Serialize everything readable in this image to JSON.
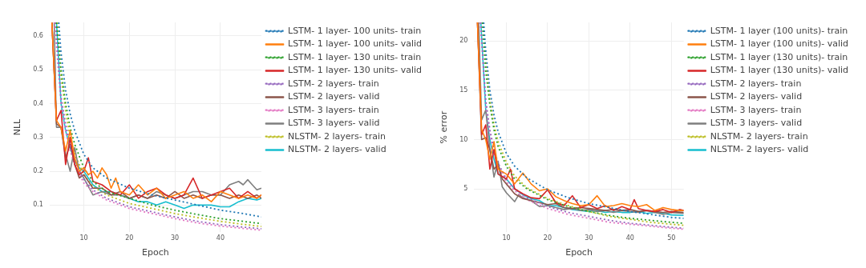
{
  "chart_data": [
    {
      "type": "line",
      "xlabel": "Epoch",
      "ylabel": "NLL",
      "xlim": [
        2.5,
        49
      ],
      "ylim": [
        0.02,
        0.64
      ],
      "xticks": [
        10,
        20,
        30,
        40
      ],
      "yticks": [
        0.1,
        0.2,
        0.3,
        0.4,
        0.5,
        0.6
      ],
      "grid": true,
      "legend": "right",
      "marker": "none",
      "series": [
        {
          "name": "LSTM- 1 layer- 100 units- train",
          "color": "#1f77b4",
          "line_style": "dotted",
          "x": [
            4.5,
            5,
            6,
            7,
            8,
            10,
            12,
            15,
            20,
            25,
            30,
            35,
            40,
            45,
            49
          ],
          "values": [
            0.64,
            0.55,
            0.44,
            0.37,
            0.32,
            0.25,
            0.21,
            0.18,
            0.15,
            0.13,
            0.115,
            0.1,
            0.085,
            0.075,
            0.065
          ]
        },
        {
          "name": "LSTM- 1 layer- 100 units- valid",
          "color": "#ff7f0e",
          "line_style": "solid",
          "x": [
            3,
            4,
            5,
            6,
            7,
            8,
            9,
            10,
            11,
            12,
            13,
            14,
            15,
            16,
            17,
            18,
            20,
            22,
            24,
            26,
            28,
            30,
            32,
            34,
            36,
            38,
            40,
            42,
            44,
            46,
            48,
            49
          ],
          "values": [
            0.64,
            0.35,
            0.33,
            0.26,
            0.32,
            0.24,
            0.2,
            0.21,
            0.19,
            0.2,
            0.18,
            0.21,
            0.19,
            0.15,
            0.18,
            0.14,
            0.13,
            0.16,
            0.13,
            0.15,
            0.12,
            0.13,
            0.14,
            0.12,
            0.13,
            0.11,
            0.14,
            0.13,
            0.12,
            0.13,
            0.12,
            0.13
          ]
        },
        {
          "name": "LSTM- 1 layer- 130 units- train",
          "color": "#2ca02c",
          "line_style": "dotted",
          "x": [
            4,
            5,
            6,
            7,
            8,
            10,
            12,
            15,
            20,
            25,
            30,
            35,
            40,
            45,
            49
          ],
          "values": [
            0.64,
            0.5,
            0.4,
            0.33,
            0.28,
            0.21,
            0.17,
            0.14,
            0.12,
            0.1,
            0.085,
            0.072,
            0.06,
            0.052,
            0.045
          ]
        },
        {
          "name": "LSTM- 1 layer- 130 units- valid",
          "color": "#d62728",
          "line_style": "solid",
          "x": [
            3,
            4,
            5,
            6,
            7,
            8,
            9,
            10,
            11,
            12,
            14,
            16,
            18,
            20,
            22,
            24,
            26,
            28,
            30,
            32,
            34,
            36,
            38,
            40,
            42,
            44,
            46,
            48,
            49
          ],
          "values": [
            0.64,
            0.35,
            0.38,
            0.22,
            0.3,
            0.22,
            0.19,
            0.2,
            0.24,
            0.17,
            0.16,
            0.14,
            0.13,
            0.16,
            0.12,
            0.14,
            0.15,
            0.13,
            0.12,
            0.13,
            0.18,
            0.12,
            0.13,
            0.14,
            0.15,
            0.12,
            0.14,
            0.12,
            0.13
          ]
        },
        {
          "name": "LSTM- 2 layers- train",
          "color": "#9467bd",
          "line_style": "dotted",
          "x": [
            3.8,
            5,
            6,
            7,
            8,
            10,
            12,
            15,
            20,
            25,
            30,
            35,
            40,
            45,
            49
          ],
          "values": [
            0.64,
            0.42,
            0.34,
            0.28,
            0.23,
            0.175,
            0.145,
            0.12,
            0.095,
            0.08,
            0.065,
            0.052,
            0.042,
            0.035,
            0.03
          ]
        },
        {
          "name": "LSTM- 2 layers- valid",
          "color": "#8c564b",
          "line_style": "solid",
          "x": [
            3,
            4,
            5,
            6,
            7,
            8,
            9,
            10,
            12,
            14,
            16,
            18,
            20,
            22,
            24,
            26,
            28,
            30,
            32,
            34,
            36,
            38,
            40,
            42,
            44,
            46,
            48,
            49
          ],
          "values": [
            0.64,
            0.34,
            0.33,
            0.24,
            0.28,
            0.22,
            0.18,
            0.19,
            0.15,
            0.15,
            0.13,
            0.14,
            0.12,
            0.13,
            0.12,
            0.13,
            0.12,
            0.14,
            0.12,
            0.13,
            0.12,
            0.13,
            0.13,
            0.12,
            0.13,
            0.12,
            0.13,
            0.12
          ]
        },
        {
          "name": "LSTM- 3 layers- train",
          "color": "#e377c2",
          "line_style": "dotted",
          "x": [
            3.6,
            5,
            6,
            7,
            8,
            10,
            12,
            15,
            20,
            25,
            30,
            35,
            40,
            45,
            49
          ],
          "values": [
            0.64,
            0.4,
            0.32,
            0.26,
            0.22,
            0.165,
            0.14,
            0.115,
            0.09,
            0.075,
            0.06,
            0.047,
            0.038,
            0.031,
            0.026
          ]
        },
        {
          "name": "LSTM- 3 layers- valid",
          "color": "#7f7f7f",
          "line_style": "solid",
          "x": [
            3.5,
            4,
            5,
            6,
            7,
            8,
            9,
            10,
            12,
            14,
            16,
            18,
            20,
            22,
            24,
            26,
            28,
            30,
            32,
            34,
            36,
            38,
            40,
            42,
            44,
            45,
            46,
            47,
            48,
            49
          ],
          "values": [
            0.64,
            0.33,
            0.33,
            0.25,
            0.2,
            0.27,
            0.2,
            0.18,
            0.13,
            0.14,
            0.13,
            0.13,
            0.12,
            0.13,
            0.12,
            0.14,
            0.13,
            0.12,
            0.13,
            0.14,
            0.14,
            0.13,
            0.13,
            0.16,
            0.17,
            0.16,
            0.175,
            0.16,
            0.145,
            0.15
          ]
        },
        {
          "name": "NLSTM- 2 layers- train",
          "color": "#bcbd22",
          "line_style": "dotted",
          "x": [
            4.2,
            5,
            6,
            7,
            8,
            10,
            12,
            15,
            20,
            25,
            30,
            35,
            40,
            45,
            49
          ],
          "values": [
            0.64,
            0.48,
            0.38,
            0.3,
            0.25,
            0.19,
            0.155,
            0.13,
            0.105,
            0.09,
            0.075,
            0.063,
            0.052,
            0.043,
            0.037
          ]
        },
        {
          "name": "NLSTM- 2 layers- valid",
          "color": "#17becf",
          "line_style": "solid",
          "x": [
            4,
            5,
            6,
            7,
            8,
            9,
            10,
            12,
            14,
            16,
            18,
            20,
            22,
            24,
            26,
            28,
            30,
            32,
            34,
            36,
            38,
            40,
            42,
            44,
            46,
            48,
            49
          ],
          "values": [
            0.64,
            0.4,
            0.32,
            0.27,
            0.23,
            0.21,
            0.2,
            0.16,
            0.14,
            0.14,
            0.13,
            0.12,
            0.11,
            0.11,
            0.1,
            0.11,
            0.1,
            0.09,
            0.1,
            0.1,
            0.1,
            0.095,
            0.095,
            0.11,
            0.12,
            0.115,
            0.12
          ]
        }
      ]
    },
    {
      "type": "line",
      "xlabel": "Epoch",
      "ylabel": "% error",
      "xlim": [
        2.2,
        53
      ],
      "ylim": [
        0.6,
        21.9
      ],
      "xticks": [
        10,
        20,
        30,
        40,
        50
      ],
      "yticks": [
        5,
        10,
        15,
        20
      ],
      "grid": true,
      "legend": "right",
      "marker": "none",
      "series": [
        {
          "name": "LSTM- 1 layer (100 units)- train",
          "color": "#1f77b4",
          "line_style": "dotted",
          "x": [
            4.5,
            5,
            6,
            7,
            8,
            10,
            12,
            15,
            20,
            25,
            30,
            35,
            40,
            45,
            50,
            53
          ],
          "values": [
            21.9,
            19,
            15,
            12.5,
            10.8,
            8.6,
            7.3,
            6.1,
            4.9,
            4.1,
            3.5,
            3.1,
            2.7,
            2.4,
            2.1,
            2.0
          ]
        },
        {
          "name": "LSTM- 1 layer (100 units)- valid",
          "color": "#ff7f0e",
          "line_style": "solid",
          "x": [
            3,
            4,
            5,
            6,
            7,
            8,
            10,
            12,
            14,
            16,
            18,
            20,
            22,
            24,
            26,
            28,
            30,
            32,
            34,
            36,
            38,
            40,
            42,
            44,
            46,
            48,
            50,
            52,
            53
          ],
          "values": [
            21.9,
            11,
            10,
            8,
            9.8,
            7,
            6.5,
            5.5,
            6.6,
            5.5,
            4.8,
            5,
            4.2,
            3.8,
            3.5,
            3.3,
            3.4,
            4.3,
            3.2,
            3.3,
            3.5,
            3.3,
            3.2,
            3.4,
            2.8,
            3.1,
            2.9,
            2.8,
            2.8
          ]
        },
        {
          "name": "LSTM- 1 layer (130 units)- train",
          "color": "#2ca02c",
          "line_style": "dotted",
          "x": [
            4.2,
            5,
            6,
            7,
            8,
            10,
            12,
            15,
            20,
            25,
            30,
            35,
            40,
            45,
            50,
            53
          ],
          "values": [
            21.9,
            17,
            13.5,
            11,
            9.3,
            7.3,
            6,
            5,
            3.9,
            3.2,
            2.7,
            2.3,
            2,
            1.8,
            1.6,
            1.5
          ]
        },
        {
          "name": "LSTM- 1 layer (130 units)- valid",
          "color": "#d62728",
          "line_style": "solid",
          "x": [
            3,
            4,
            5,
            6,
            7,
            8,
            10,
            11,
            12,
            14,
            16,
            18,
            20,
            22,
            24,
            26,
            28,
            30,
            32,
            34,
            36,
            38,
            40,
            41,
            42,
            44,
            46,
            48,
            50,
            52,
            53
          ],
          "values": [
            21.9,
            10.5,
            11.5,
            7,
            9,
            6.5,
            6,
            7,
            5,
            4.5,
            4.1,
            4,
            4.9,
            3.6,
            3.3,
            4.3,
            3.1,
            3.4,
            3,
            3.3,
            2.8,
            3.2,
            2.9,
            3.9,
            3,
            2.8,
            2.7,
            2.9,
            2.6,
            2.9,
            2.8
          ]
        },
        {
          "name": "LSTM- 2 layers- train",
          "color": "#9467bd",
          "line_style": "dotted",
          "x": [
            3.8,
            5,
            6,
            7,
            8,
            10,
            12,
            15,
            20,
            25,
            30,
            35,
            40,
            45,
            50,
            53
          ],
          "values": [
            21.9,
            14,
            11,
            9,
            7.6,
            6,
            5,
            4.1,
            3.2,
            2.6,
            2.2,
            1.8,
            1.5,
            1.3,
            1.1,
            1.0
          ]
        },
        {
          "name": "LSTM- 2 layers- valid",
          "color": "#8c564b",
          "line_style": "solid",
          "x": [
            3,
            4,
            5,
            6,
            7,
            8,
            9,
            10,
            12,
            14,
            16,
            18,
            20,
            22,
            24,
            26,
            28,
            30,
            32,
            34,
            36,
            38,
            40,
            42,
            44,
            46,
            48,
            50,
            53
          ],
          "values": [
            21.9,
            10,
            10.2,
            9,
            7,
            7.5,
            6,
            5.5,
            4.5,
            4,
            3.8,
            3.6,
            3.4,
            3.5,
            3.1,
            3,
            3.1,
            3,
            2.9,
            2.8,
            2.9,
            2.8,
            2.9,
            2.7,
            2.8,
            2.7,
            2.6,
            2.7,
            2.6
          ]
        },
        {
          "name": "LSTM- 3 layers- train",
          "color": "#e377c2",
          "line_style": "dotted",
          "x": [
            3.7,
            5,
            6,
            7,
            8,
            10,
            12,
            15,
            20,
            25,
            30,
            35,
            40,
            45,
            50,
            53
          ],
          "values": [
            21.9,
            13.5,
            10.5,
            8.6,
            7.3,
            5.7,
            4.8,
            3.9,
            3,
            2.4,
            2,
            1.6,
            1.4,
            1.2,
            1.0,
            0.9
          ]
        },
        {
          "name": "LSTM- 3 layers- valid",
          "color": "#7f7f7f",
          "line_style": "solid",
          "x": [
            3.3,
            4,
            5,
            6,
            7,
            8,
            9,
            10,
            12,
            13,
            14,
            16,
            18,
            20,
            22,
            24,
            26,
            28,
            30,
            32,
            34,
            36,
            38,
            40,
            42,
            44,
            46,
            48,
            50,
            53
          ],
          "values": [
            21.9,
            12,
            13,
            9,
            6.2,
            7.8,
            5.2,
            4.6,
            3.7,
            4.4,
            4.1,
            3.8,
            3.2,
            3.3,
            3.1,
            2.9,
            3,
            2.8,
            2.9,
            2.7,
            2.8,
            2.6,
            2.8,
            2.7,
            2.6,
            2.8,
            2.6,
            2.4,
            2.6,
            2.5
          ]
        },
        {
          "name": "NLSTM- 2 layers- train",
          "color": "#bcbd22",
          "line_style": "dotted",
          "x": [
            4.3,
            5,
            6,
            7,
            8,
            10,
            12,
            15,
            20,
            25,
            30,
            35,
            40,
            45,
            50,
            53
          ],
          "values": [
            21.9,
            18,
            14,
            11.5,
            9.8,
            7.7,
            6.3,
            5.1,
            4,
            3.3,
            2.7,
            2.2,
            1.9,
            1.6,
            1.4,
            1.3
          ]
        },
        {
          "name": "NLSTM- 2 layers- valid",
          "color": "#17becf",
          "line_style": "solid",
          "x": [
            3.8,
            5,
            6,
            7,
            8,
            10,
            12,
            14,
            16,
            18,
            20,
            22,
            24,
            26,
            28,
            30,
            32,
            34,
            36,
            38,
            40,
            42,
            44,
            46,
            48,
            50,
            53
          ],
          "values": [
            21.9,
            13,
            10,
            8,
            6.5,
            6,
            5,
            4.4,
            4,
            3.8,
            3.3,
            3.3,
            3.1,
            2.9,
            2.8,
            2.7,
            2.8,
            2.6,
            2.7,
            2.6,
            2.6,
            2.7,
            2.5,
            2.6,
            2.5,
            2.35,
            2.3
          ]
        }
      ]
    }
  ]
}
